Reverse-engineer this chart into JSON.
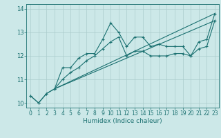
{
  "title": "",
  "xlabel": "Humidex (Indice chaleur)",
  "bg_color": "#cce8e8",
  "line_color": "#1a7070",
  "grid_color": "#aacccc",
  "ylim": [
    9.8,
    14.2
  ],
  "xlim": [
    -0.5,
    23.5
  ],
  "yticks": [
    10,
    11,
    12,
    13,
    14
  ],
  "xticks": [
    0,
    1,
    2,
    3,
    4,
    5,
    6,
    7,
    8,
    9,
    10,
    11,
    12,
    13,
    14,
    15,
    16,
    17,
    18,
    19,
    20,
    21,
    22,
    23
  ],
  "lines": [
    {
      "x": [
        0,
        1,
        2,
        3,
        4,
        5,
        6,
        7,
        8,
        9,
        10,
        11,
        12,
        13,
        14,
        15,
        16,
        17,
        18,
        19,
        20,
        21,
        22,
        23
      ],
      "y": [
        10.3,
        10.0,
        10.4,
        10.6,
        11.5,
        11.5,
        11.9,
        12.1,
        12.1,
        12.7,
        13.4,
        13.0,
        12.4,
        12.8,
        12.8,
        12.4,
        12.5,
        12.4,
        12.4,
        12.4,
        12.0,
        12.6,
        12.7,
        13.8
      ],
      "marker": true
    },
    {
      "x": [
        0,
        1,
        2,
        3,
        4,
        5,
        6,
        7,
        8,
        9,
        10,
        11,
        12,
        13,
        14,
        15,
        16,
        17,
        18,
        19,
        20,
        21,
        22,
        23
      ],
      "y": [
        10.3,
        10.0,
        10.4,
        10.6,
        11.0,
        11.3,
        11.5,
        11.8,
        12.0,
        12.3,
        12.6,
        12.8,
        12.0,
        12.2,
        12.2,
        12.0,
        12.0,
        12.0,
        12.1,
        12.1,
        12.0,
        12.3,
        12.4,
        13.5
      ],
      "marker": true
    },
    {
      "x": [
        3,
        23
      ],
      "y": [
        10.6,
        13.8
      ],
      "marker": false
    },
    {
      "x": [
        3,
        23
      ],
      "y": [
        10.6,
        13.5
      ],
      "marker": false
    }
  ],
  "xlabel_fontsize": 6.5,
  "tick_fontsize": 5.5
}
